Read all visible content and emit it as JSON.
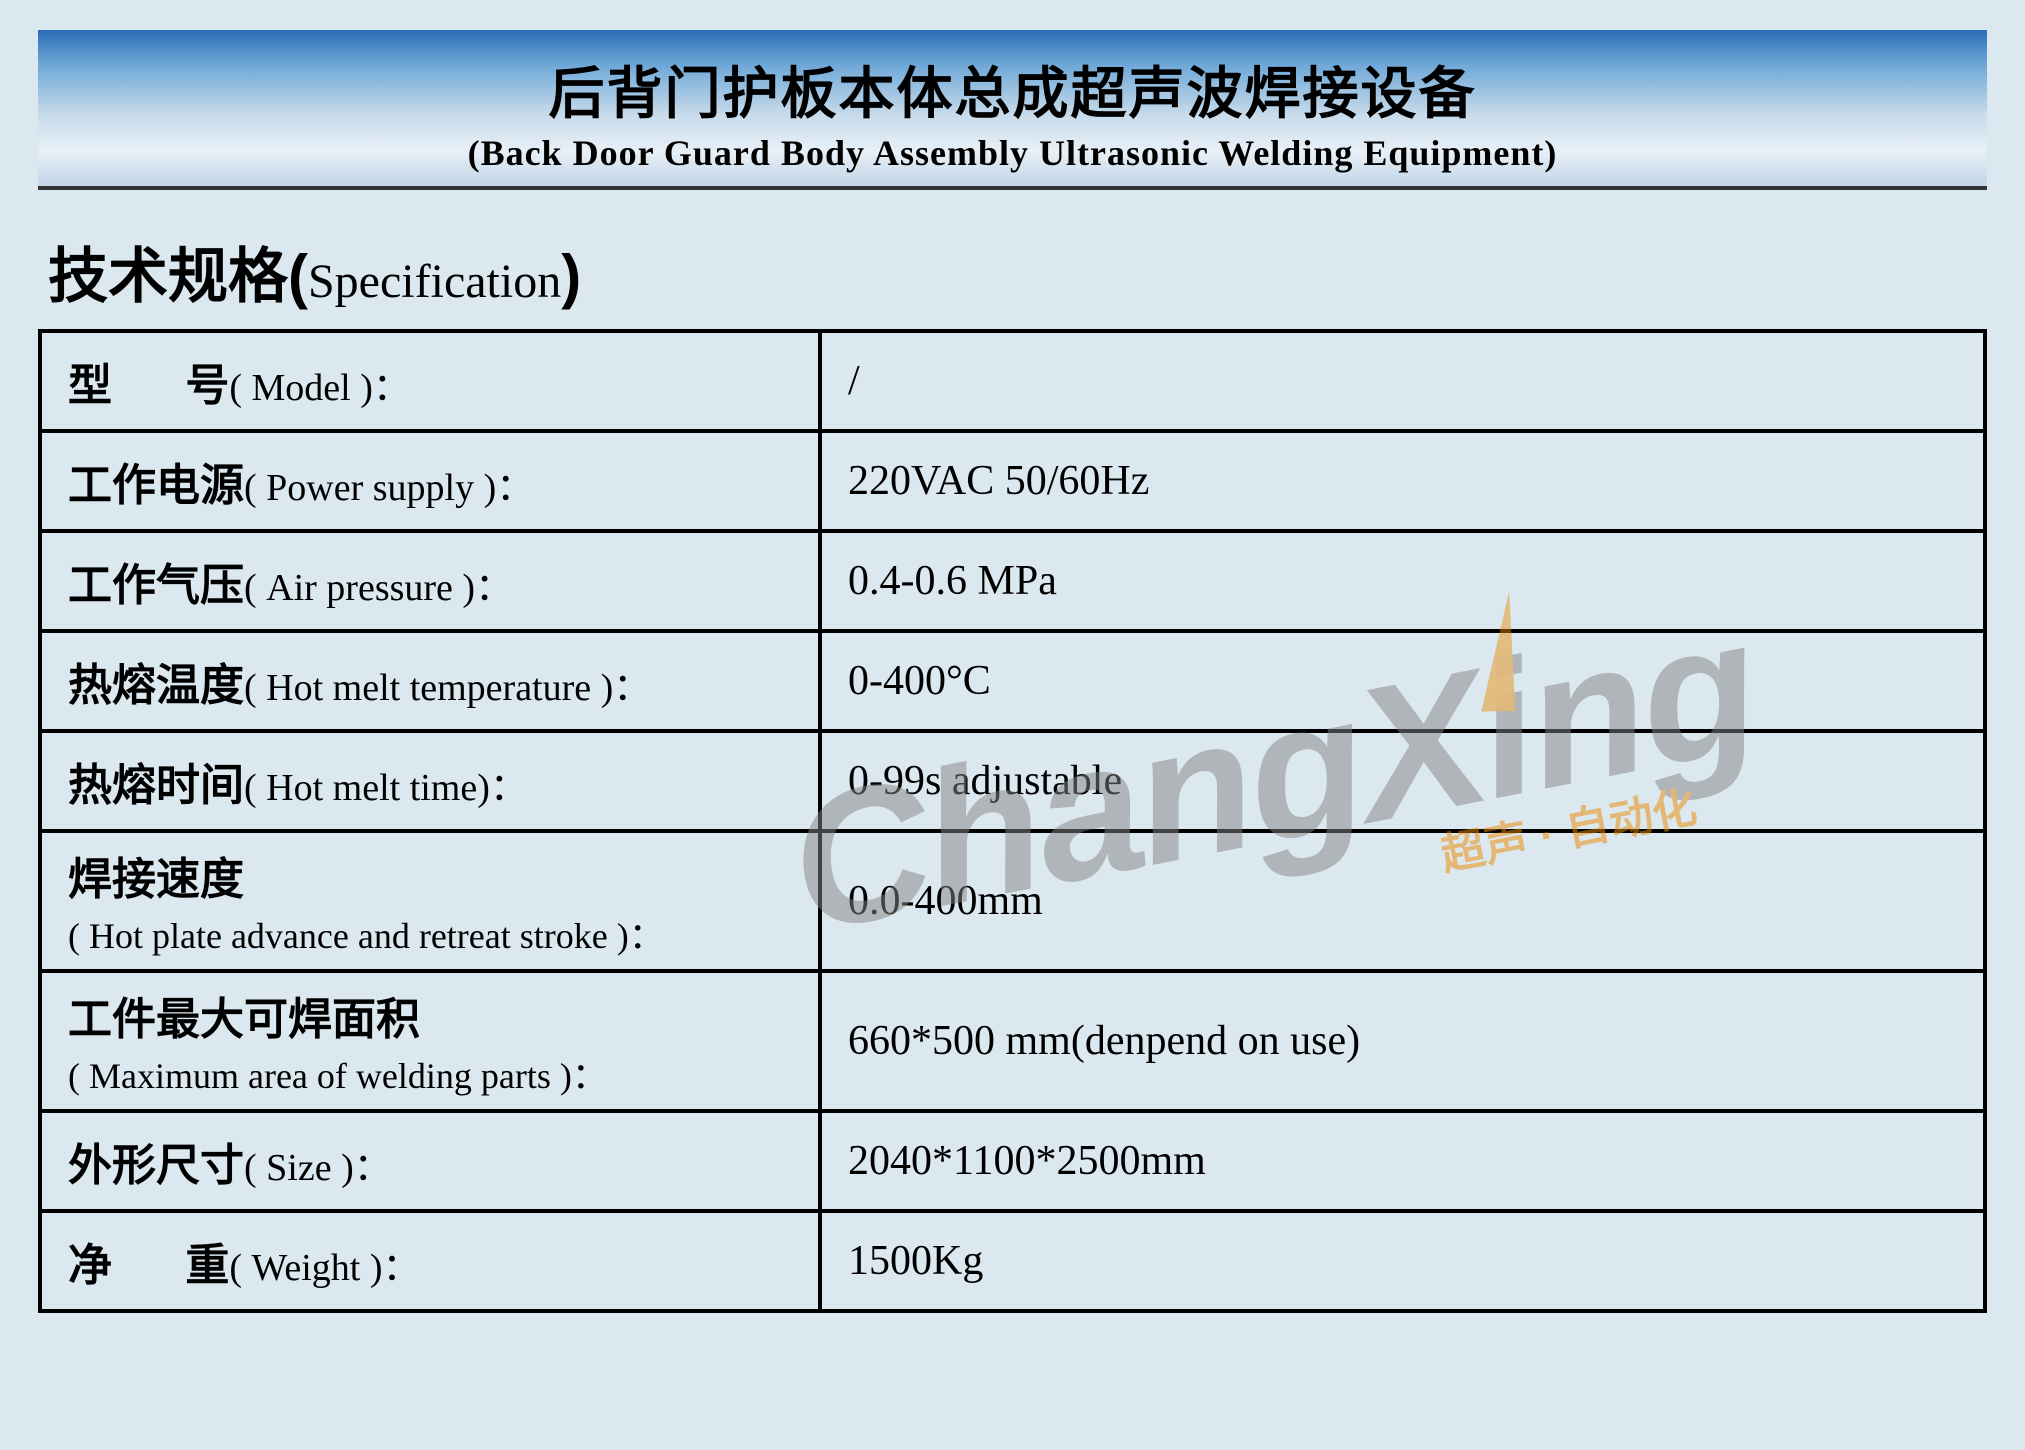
{
  "header": {
    "title_cn": "后背门护板本体总成超声波焊接设备",
    "title_en": "(Back Door Guard Body Assembly Ultrasonic Welding Equipment)"
  },
  "spec_heading": {
    "cn": "技术规格",
    "en": "Specification"
  },
  "rows": [
    {
      "label_cn": "型",
      "label_cn2": "号",
      "label_en": "( Model )：",
      "value": "/",
      "spaced": true
    },
    {
      "label_cn": "工作电源",
      "label_en": "( Power supply )：",
      "value": "220VAC 50/60Hz"
    },
    {
      "label_cn": "工作气压",
      "label_en": "( Air pressure )：",
      "value": "0.4-0.6 MPa"
    },
    {
      "label_cn": "热熔温度",
      "label_en": "( Hot melt temperature )：",
      "value": "0-400°C"
    },
    {
      "label_cn": "热熔时间",
      "label_en": "( Hot melt time)：",
      "value": "0-99s adjustable"
    },
    {
      "label_cn": "焊接速度",
      "label_en": "( Hot plate advance and retreat stroke )：",
      "value": "0.0-400mm",
      "twoline": true
    },
    {
      "label_cn": "工件最大可焊面积",
      "label_en": "( Maximum area of welding parts )：",
      "value": "660*500 mm(denpend on use)",
      "twoline": true
    },
    {
      "label_cn": "外形尺寸",
      "label_en": "( Size )：",
      "value": "2040*1100*2500mm"
    },
    {
      "label_cn": "净",
      "label_cn2": "重",
      "label_en": "( Weight )：",
      "value": "1500Kg",
      "spaced": true
    }
  ],
  "watermark": {
    "main": "ChangXing",
    "sub": "超声 · 自动化"
  },
  "colors": {
    "page_bg": "#dce8ef",
    "banner_gradient_top": "#2b6cb5",
    "banner_gradient_bottom": "#c1d5e7",
    "border": "#000000",
    "watermark_gray": "#838383",
    "watermark_orange": "#ea8a00"
  }
}
